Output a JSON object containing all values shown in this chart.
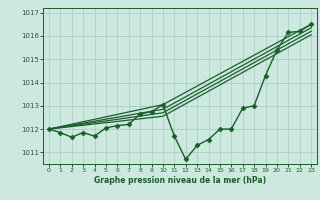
{
  "title": "Graphe pression niveau de la mer (hPa)",
  "xlim": [
    -0.5,
    23.5
  ],
  "ylim": [
    1010.5,
    1017.2
  ],
  "yticks": [
    1011,
    1012,
    1013,
    1014,
    1015,
    1016,
    1017
  ],
  "xticks": [
    0,
    1,
    2,
    3,
    4,
    5,
    6,
    7,
    8,
    9,
    10,
    11,
    12,
    13,
    14,
    15,
    16,
    17,
    18,
    19,
    20,
    21,
    22,
    23
  ],
  "bg_color": "#cce8df",
  "grid_color": "#aacfc5",
  "line_color": "#1a5e2a",
  "lines": [
    {
      "x": [
        0,
        1,
        2,
        3,
        4,
        5,
        6,
        7,
        8,
        9,
        10,
        11,
        12,
        13,
        14,
        15,
        16,
        17,
        18,
        19,
        20,
        21,
        22,
        23
      ],
      "y": [
        1012.0,
        1011.85,
        1011.65,
        1011.85,
        1011.7,
        1012.05,
        1012.15,
        1012.2,
        1012.65,
        1012.75,
        1013.05,
        1011.7,
        1010.7,
        1011.3,
        1011.55,
        1012.0,
        1012.0,
        1012.9,
        1013.0,
        1014.3,
        1015.4,
        1016.15,
        1016.2,
        1016.5
      ],
      "marker": "D",
      "markersize": 2.5,
      "linewidth": 1.0
    },
    {
      "x": [
        0,
        10,
        23
      ],
      "y": [
        1012.0,
        1013.05,
        1016.5
      ],
      "marker": null,
      "linewidth": 0.9
    },
    {
      "x": [
        0,
        10,
        23
      ],
      "y": [
        1012.0,
        1012.85,
        1016.35
      ],
      "marker": null,
      "linewidth": 0.9
    },
    {
      "x": [
        0,
        10,
        23
      ],
      "y": [
        1012.0,
        1012.7,
        1016.2
      ],
      "marker": null,
      "linewidth": 0.9
    },
    {
      "x": [
        0,
        10,
        23
      ],
      "y": [
        1012.0,
        1012.55,
        1016.05
      ],
      "marker": null,
      "linewidth": 0.9
    }
  ]
}
